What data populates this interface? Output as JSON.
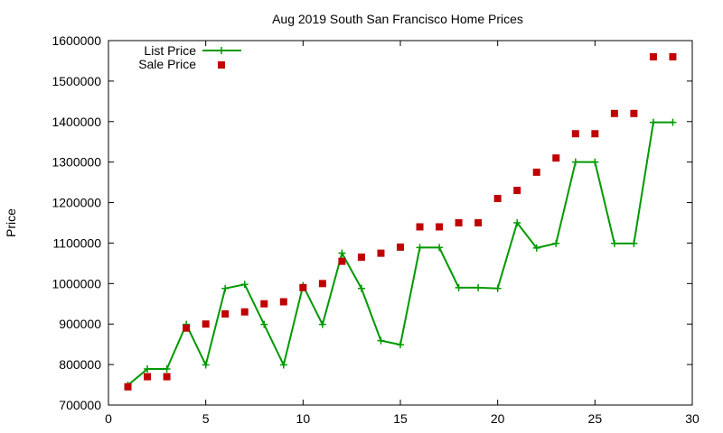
{
  "chart_data": {
    "type": "line",
    "title": "Aug 2019 South San Francisco Home Prices",
    "xlabel": "",
    "ylabel": "Price",
    "xlim": [
      0,
      30
    ],
    "ylim": [
      700000,
      1600000
    ],
    "xticks": [
      0,
      5,
      10,
      15,
      20,
      25,
      30
    ],
    "yticks": [
      700000,
      800000,
      900000,
      1000000,
      1100000,
      1200000,
      1300000,
      1400000,
      1500000,
      1600000
    ],
    "grid": false,
    "legend_position": "top-left",
    "series": [
      {
        "name": "List Price",
        "style": "line+cross",
        "color": "#009900",
        "x": [
          1,
          2,
          3,
          4,
          5,
          6,
          7,
          8,
          9,
          10,
          11,
          12,
          13,
          14,
          15,
          16,
          17,
          18,
          19,
          20,
          21,
          22,
          23,
          24,
          25,
          26,
          27,
          28,
          29
        ],
        "values": [
          749000,
          789000,
          789000,
          899000,
          799000,
          988000,
          998000,
          899000,
          799000,
          995000,
          899000,
          1075000,
          988000,
          859000,
          849000,
          1089000,
          1089000,
          990000,
          990000,
          988000,
          1150000,
          1088000,
          1099000,
          1300000,
          1300000,
          1099000,
          1099000,
          1398000,
          1398000
        ]
      },
      {
        "name": "Sale Price",
        "style": "square",
        "color": "#c00000",
        "x": [
          1,
          2,
          3,
          4,
          5,
          6,
          7,
          8,
          9,
          10,
          11,
          12,
          13,
          14,
          15,
          16,
          17,
          18,
          19,
          20,
          21,
          22,
          23,
          24,
          25,
          26,
          27,
          28,
          29
        ],
        "values": [
          745000,
          770000,
          770000,
          890000,
          900000,
          925000,
          930000,
          950000,
          955000,
          990000,
          1000000,
          1055000,
          1065000,
          1075000,
          1090000,
          1140000,
          1140000,
          1150000,
          1150000,
          1210000,
          1230000,
          1275000,
          1310000,
          1370000,
          1370000,
          1420000,
          1420000,
          1560000,
          1560000
        ]
      }
    ]
  }
}
